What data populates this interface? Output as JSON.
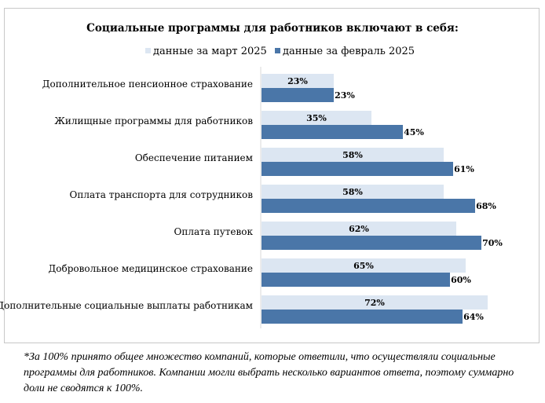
{
  "chart_data": {
    "type": "bar",
    "orientation": "horizontal",
    "title": "Социальные программы для работников включают в себя:",
    "legend_position": "top",
    "categories": [
      "Дополнительное пенсионное страхование",
      "Жилищные программы для работников",
      "Обеспечение питанием",
      "Оплата транспорта для сотрудников",
      "Оплата путевок",
      "Добровольное медицинское страхование",
      "Дополнительные социальные выплаты работникам"
    ],
    "series": [
      {
        "name": "данные за март 2025",
        "color": "#dce6f2",
        "values": [
          23,
          35,
          58,
          58,
          62,
          65,
          72
        ],
        "labels": [
          "23%",
          "35%",
          "58%",
          "58%",
          "62%",
          "65%",
          "72%"
        ]
      },
      {
        "name": "данные за февраль 2025",
        "color": "#4a76a8",
        "values": [
          23,
          45,
          61,
          68,
          70,
          60,
          64
        ],
        "labels": [
          "23%",
          "45%",
          "61%",
          "68%",
          "70%",
          "60%",
          "64%"
        ]
      }
    ],
    "xlim": [
      0,
      72
    ],
    "grid": false
  },
  "footnote": "*За 100% принято общее множество компаний, которые ответили, что осуществляли социальные программы для работников. Компании могли выбрать несколько вариантов ответа, поэтому суммарно доли не сводятся к 100%."
}
